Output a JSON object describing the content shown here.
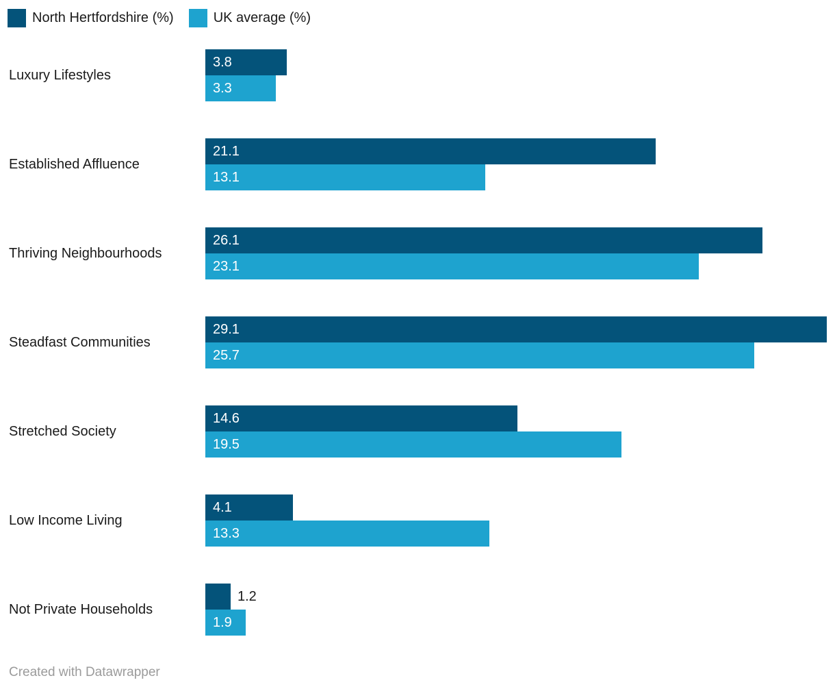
{
  "legend": {
    "items": [
      {
        "label": "North Hertfordshire (%)",
        "color": "#04537a"
      },
      {
        "label": "UK average (%)",
        "color": "#1ea3cf"
      }
    ]
  },
  "footer": {
    "credit": "Created with Datawrapper"
  },
  "chart_data": {
    "type": "bar",
    "orientation": "horizontal",
    "title": "",
    "xlabel": "",
    "ylabel": "",
    "xlim": [
      0,
      29.1
    ],
    "grid": false,
    "legend_position": "top",
    "value_labels": true,
    "categories": [
      "Luxury Lifestyles",
      "Established Affluence",
      "Thriving Neighbourhoods",
      "Steadfast Communities",
      "Stretched Society",
      "Low Income Living",
      "Not Private Households"
    ],
    "series": [
      {
        "name": "North Hertfordshire (%)",
        "color": "#04537a",
        "values": [
          3.8,
          21.1,
          26.1,
          29.1,
          14.6,
          4.1,
          1.2
        ]
      },
      {
        "name": "UK average (%)",
        "color": "#1ea3cf",
        "values": [
          3.3,
          13.1,
          23.1,
          25.7,
          19.5,
          13.3,
          1.9
        ]
      }
    ]
  }
}
